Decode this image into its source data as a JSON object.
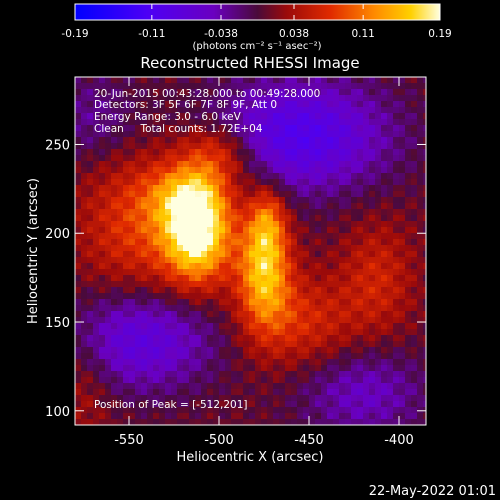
{
  "chart_data": {
    "type": "heatmap",
    "title": "Reconstructed RHESSI Image",
    "xlabel": "Heliocentric X (arcsec)",
    "ylabel": "Heliocentric Y (arcsec)",
    "xlim": [
      -580,
      -385
    ],
    "ylim": [
      92,
      288
    ],
    "x_ticks": [
      -550,
      -500,
      -450,
      -400
    ],
    "y_ticks": [
      100,
      150,
      200,
      250
    ],
    "colorbar": {
      "range": [
        -0.19,
        0.19
      ],
      "ticks": [
        -0.19,
        -0.11,
        -0.038,
        0.038,
        0.11,
        0.19
      ],
      "tick_labels": [
        "-0.19",
        "-0.11",
        "-0.038",
        "0.038",
        "0.11",
        "0.19"
      ],
      "units_label": "(photons cm⁻² s⁻¹ asec⁻²)"
    },
    "annotations": [
      "20-Jun-2015 00:43:28.000 to 00:49:28.000",
      "Detectors: 3F 5F 6F 7F 8F 9F, Att 0",
      "Energy Range: 3.0 - 6.0 keV",
      "Clean     Total counts: 1.72E+04"
    ],
    "peak_label": "Position of Peak = [-512,201]",
    "peak_position": [
      -512,
      201
    ],
    "components": [
      {
        "x": -512,
        "y": 201,
        "sx": 13,
        "sy": 20,
        "amp": 0.19
      },
      {
        "x": -518,
        "y": 222,
        "sx": 16,
        "sy": 12,
        "amp": 0.07
      },
      {
        "x": -475,
        "y": 180,
        "sx": 10,
        "sy": 22,
        "amp": 0.14
      },
      {
        "x": -473,
        "y": 208,
        "sx": 7,
        "sy": 14,
        "amp": 0.07
      },
      {
        "x": -500,
        "y": 245,
        "sx": 15,
        "sy": 12,
        "amp": 0.08
      },
      {
        "x": -545,
        "y": 205,
        "sx": 22,
        "sy": 28,
        "amp": 0.07
      },
      {
        "x": -455,
        "y": 150,
        "sx": 22,
        "sy": 18,
        "amp": 0.06
      },
      {
        "x": -412,
        "y": 175,
        "sx": 14,
        "sy": 22,
        "amp": 0.05
      },
      {
        "x": -575,
        "y": 120,
        "sx": 12,
        "sy": 25,
        "amp": 0.035
      },
      {
        "x": -455,
        "y": 255,
        "sx": 35,
        "sy": 22,
        "amp": -0.11
      },
      {
        "x": -545,
        "y": 140,
        "sx": 30,
        "sy": 20,
        "amp": -0.09
      },
      {
        "x": -420,
        "y": 110,
        "sx": 25,
        "sy": 18,
        "amp": -0.06
      },
      {
        "x": -570,
        "y": 265,
        "sx": 18,
        "sy": 18,
        "amp": -0.04
      }
    ]
  },
  "footer": {
    "date": "22-May-2022 01:01"
  }
}
